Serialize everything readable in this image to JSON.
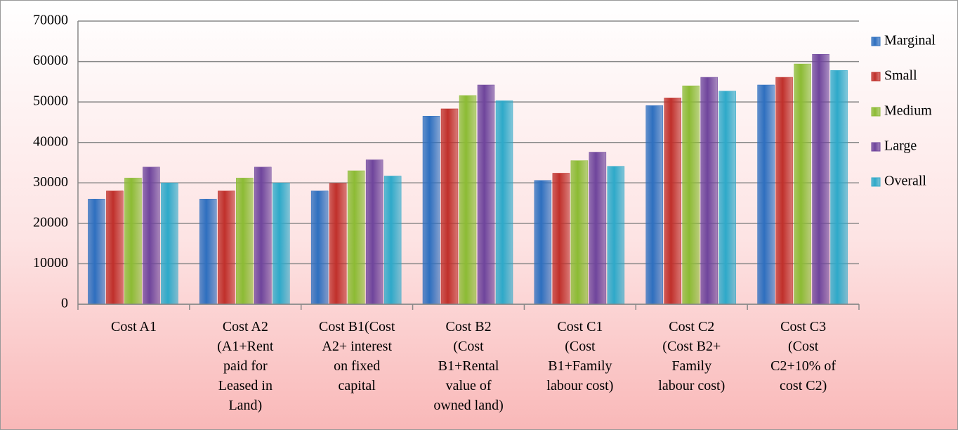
{
  "chart_data": {
    "type": "bar",
    "categories": [
      "Cost A1",
      "Cost A2\n(A1+Rent\npaid for\nLeased in\nLand)",
      "Cost B1(Cost\nA2+ interest\non fixed\ncapital",
      "Cost B2\n(Cost\nB1+Rental\nvalue of\nowned land)",
      "Cost C1\n(Cost\nB1+Family\nlabour cost)",
      "Cost C2\n(Cost B2+\nFamily\nlabour cost)",
      "Cost C3\n(Cost\nC2+10% of\ncost C2)"
    ],
    "series": [
      {
        "name": "Marginal",
        "color": "#2e6fbf",
        "values": [
          26000,
          26000,
          28000,
          46500,
          30600,
          49100,
          54200
        ]
      },
      {
        "name": "Small",
        "color": "#c0302b",
        "values": [
          28000,
          28000,
          29900,
          48300,
          32400,
          51000,
          56100
        ]
      },
      {
        "name": "Medium",
        "color": "#8cbb34",
        "values": [
          31200,
          31200,
          33000,
          51600,
          35500,
          54000,
          59400
        ]
      },
      {
        "name": "Large",
        "color": "#6f459c",
        "values": [
          33900,
          33900,
          35700,
          54200,
          37600,
          56100,
          61800
        ]
      },
      {
        "name": "Overall",
        "color": "#2ea9c9",
        "values": [
          30000,
          30000,
          31700,
          50300,
          34100,
          52700,
          57800
        ]
      }
    ],
    "ylim": [
      0,
      70000
    ],
    "yticks": [
      0,
      10000,
      20000,
      30000,
      40000,
      50000,
      60000,
      70000
    ],
    "grid": true,
    "legend": "right"
  }
}
